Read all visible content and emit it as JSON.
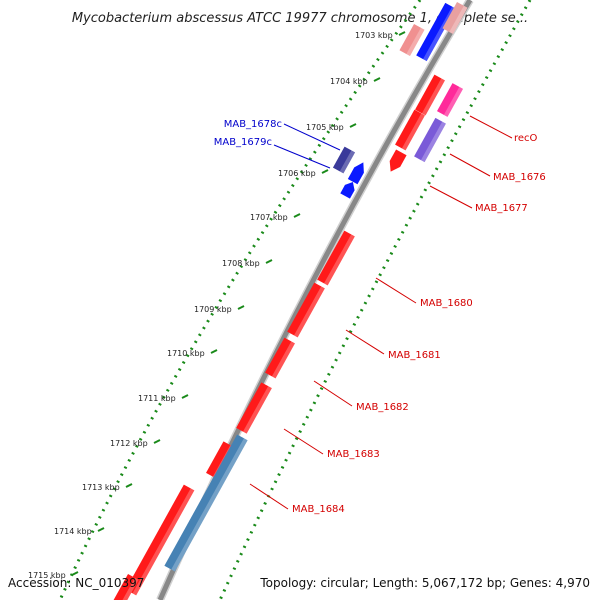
{
  "title": "Mycobacterium abscessus ATCC 19977 chromosome 1, complete se...",
  "footer": {
    "accession": "Accession: NC_010397",
    "summary": "Topology: circular; Length: 5,067,172 bp; Genes: 4,970"
  },
  "ticks": [
    "1703 kbp",
    "1704 kbp",
    "1705 kbp",
    "1706 kbp",
    "1707 kbp",
    "1708 kbp",
    "1709 kbp",
    "1710 kbp",
    "1711 kbp",
    "1712 kbp",
    "1713 kbp",
    "1714 kbp",
    "1715 kbp"
  ],
  "genes": {
    "reverse": [
      "MAB_1678c",
      "MAB_1679c"
    ],
    "forward": [
      "recO",
      "MAB_1676",
      "MAB_1677",
      "MAB_1680",
      "MAB_1681",
      "MAB_1682",
      "MAB_1683",
      "MAB_1684"
    ]
  },
  "colors": {
    "forward_gene": "#ff1a1a",
    "reverse_gene": "#0a1aff",
    "label_forward": "#d40000",
    "label_reverse": "#0000cc",
    "hypothetical": "#4682b4",
    "recO": "#ff2a9a",
    "backbone": "#888888",
    "tick_forward": "#1a8a1a"
  }
}
